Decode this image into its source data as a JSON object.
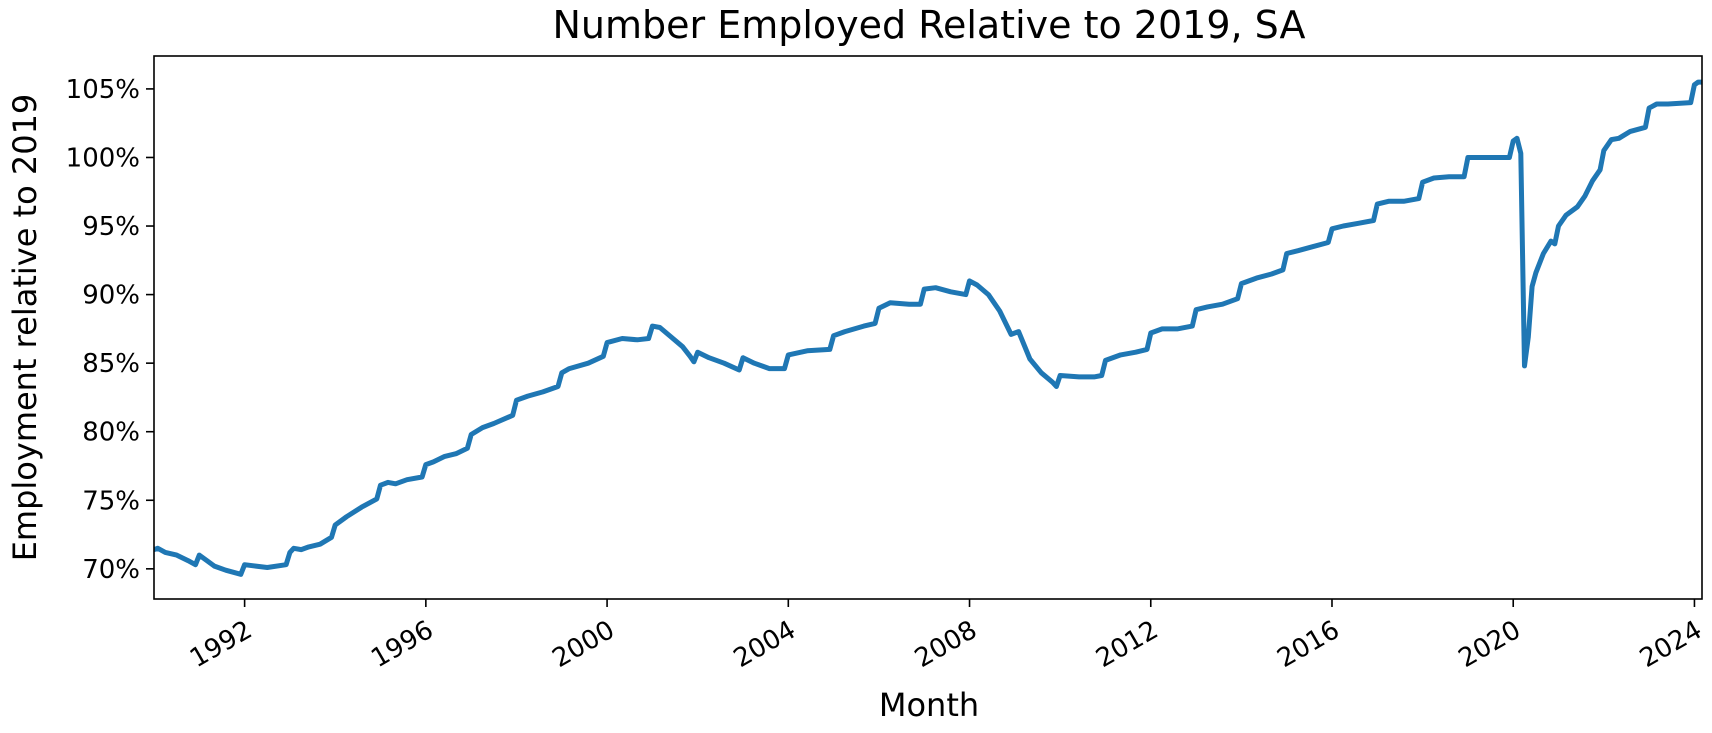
{
  "chart_data": {
    "type": "line",
    "title": "Number Employed Relative to 2019, SA",
    "xlabel": "Month",
    "ylabel": "Employment relative to 2019",
    "y_tick_format": "percent",
    "xlim": [
      "1990-01",
      "2024-03"
    ],
    "ylim": [
      67.8,
      107.4
    ],
    "grid": false,
    "x_ticks": [
      "1992",
      "1996",
      "2000",
      "2004",
      "2008",
      "2012",
      "2016",
      "2020",
      "2024"
    ],
    "y_ticks": [
      "70%",
      "75%",
      "80%",
      "85%",
      "90%",
      "95%",
      "100%",
      "105%"
    ],
    "series": [
      {
        "color": "#1f77b4",
        "points": [
          [
            "1990-01",
            71.4
          ],
          [
            "1990-02",
            71.5
          ],
          [
            "1990-04",
            71.2
          ],
          [
            "1990-07",
            71.0
          ],
          [
            "1990-10",
            70.6
          ],
          [
            "1990-12",
            70.3
          ],
          [
            "1991-01",
            71.0
          ],
          [
            "1991-03",
            70.6
          ],
          [
            "1991-05",
            70.2
          ],
          [
            "1991-08",
            69.9
          ],
          [
            "1991-12",
            69.6
          ],
          [
            "1992-01",
            70.3
          ],
          [
            "1992-04",
            70.2
          ],
          [
            "1992-07",
            70.1
          ],
          [
            "1992-12",
            70.3
          ],
          [
            "1993-01",
            71.2
          ],
          [
            "1993-02",
            71.5
          ],
          [
            "1993-04",
            71.4
          ],
          [
            "1993-06",
            71.6
          ],
          [
            "1993-09",
            71.8
          ],
          [
            "1993-12",
            72.3
          ],
          [
            "1994-01",
            73.2
          ],
          [
            "1994-04",
            73.8
          ],
          [
            "1994-08",
            74.5
          ],
          [
            "1994-12",
            75.1
          ],
          [
            "1995-01",
            76.1
          ],
          [
            "1995-03",
            76.3
          ],
          [
            "1995-05",
            76.2
          ],
          [
            "1995-08",
            76.5
          ],
          [
            "1995-12",
            76.7
          ],
          [
            "1996-01",
            77.6
          ],
          [
            "1996-03",
            77.8
          ],
          [
            "1996-06",
            78.2
          ],
          [
            "1996-09",
            78.4
          ],
          [
            "1996-12",
            78.8
          ],
          [
            "1997-01",
            79.8
          ],
          [
            "1997-04",
            80.3
          ],
          [
            "1997-07",
            80.6
          ],
          [
            "1997-12",
            81.2
          ],
          [
            "1998-01",
            82.3
          ],
          [
            "1998-04",
            82.6
          ],
          [
            "1998-08",
            82.9
          ],
          [
            "1998-12",
            83.3
          ],
          [
            "1999-01",
            84.3
          ],
          [
            "1999-03",
            84.6
          ],
          [
            "1999-08",
            85.0
          ],
          [
            "1999-12",
            85.5
          ],
          [
            "2000-01",
            86.5
          ],
          [
            "2000-05",
            86.8
          ],
          [
            "2000-09",
            86.7
          ],
          [
            "2000-12",
            86.8
          ],
          [
            "2001-01",
            87.7
          ],
          [
            "2001-03",
            87.6
          ],
          [
            "2001-06",
            86.9
          ],
          [
            "2001-09",
            86.2
          ],
          [
            "2001-11",
            85.5
          ],
          [
            "2001-12",
            85.1
          ],
          [
            "2002-01",
            85.8
          ],
          [
            "2002-04",
            85.4
          ],
          [
            "2002-08",
            85.0
          ],
          [
            "2002-12",
            84.5
          ],
          [
            "2003-01",
            85.4
          ],
          [
            "2003-04",
            85.0
          ],
          [
            "2003-08",
            84.6
          ],
          [
            "2003-12",
            84.6
          ],
          [
            "2004-01",
            85.6
          ],
          [
            "2004-06",
            85.9
          ],
          [
            "2004-12",
            86.0
          ],
          [
            "2005-01",
            87.0
          ],
          [
            "2005-04",
            87.3
          ],
          [
            "2005-09",
            87.7
          ],
          [
            "2005-12",
            87.9
          ],
          [
            "2006-01",
            89.0
          ],
          [
            "2006-04",
            89.4
          ],
          [
            "2006-09",
            89.3
          ],
          [
            "2006-12",
            89.3
          ],
          [
            "2007-01",
            90.4
          ],
          [
            "2007-04",
            90.5
          ],
          [
            "2007-08",
            90.2
          ],
          [
            "2007-12",
            90.0
          ],
          [
            "2008-01",
            91.0
          ],
          [
            "2008-03",
            90.7
          ],
          [
            "2008-06",
            90.0
          ],
          [
            "2008-09",
            88.8
          ],
          [
            "2008-12",
            87.1
          ],
          [
            "2009-02",
            87.3
          ],
          [
            "2009-05",
            85.3
          ],
          [
            "2009-08",
            84.3
          ],
          [
            "2009-11",
            83.6
          ],
          [
            "2009-12",
            83.3
          ],
          [
            "2010-01",
            84.1
          ],
          [
            "2010-06",
            84.0
          ],
          [
            "2010-10",
            84.0
          ],
          [
            "2010-12",
            84.1
          ],
          [
            "2011-01",
            85.2
          ],
          [
            "2011-05",
            85.6
          ],
          [
            "2011-09",
            85.8
          ],
          [
            "2011-12",
            86.0
          ],
          [
            "2012-01",
            87.2
          ],
          [
            "2012-04",
            87.5
          ],
          [
            "2012-08",
            87.5
          ],
          [
            "2012-12",
            87.7
          ],
          [
            "2013-01",
            88.9
          ],
          [
            "2013-04",
            89.1
          ],
          [
            "2013-08",
            89.3
          ],
          [
            "2013-12",
            89.7
          ],
          [
            "2014-01",
            90.8
          ],
          [
            "2014-05",
            91.2
          ],
          [
            "2014-09",
            91.5
          ],
          [
            "2014-12",
            91.8
          ],
          [
            "2015-01",
            93.0
          ],
          [
            "2015-04",
            93.2
          ],
          [
            "2015-08",
            93.5
          ],
          [
            "2015-12",
            93.8
          ],
          [
            "2016-01",
            94.8
          ],
          [
            "2016-04",
            95.0
          ],
          [
            "2016-08",
            95.2
          ],
          [
            "2016-12",
            95.4
          ],
          [
            "2017-01",
            96.6
          ],
          [
            "2017-04",
            96.8
          ],
          [
            "2017-08",
            96.8
          ],
          [
            "2017-12",
            97.0
          ],
          [
            "2018-01",
            98.2
          ],
          [
            "2018-04",
            98.5
          ],
          [
            "2018-08",
            98.6
          ],
          [
            "2018-12",
            98.6
          ],
          [
            "2019-01",
            100.0
          ],
          [
            "2019-06",
            100.0
          ],
          [
            "2019-12",
            100.0
          ],
          [
            "2020-01",
            101.2
          ],
          [
            "2020-02",
            101.4
          ],
          [
            "2020-03",
            100.3
          ],
          [
            "2020-04",
            84.8
          ],
          [
            "2020-05",
            86.9
          ],
          [
            "2020-06",
            90.6
          ],
          [
            "2020-07",
            91.6
          ],
          [
            "2020-09",
            93.0
          ],
          [
            "2020-11",
            93.9
          ],
          [
            "2020-12",
            93.7
          ],
          [
            "2021-01",
            95.0
          ],
          [
            "2021-03",
            95.8
          ],
          [
            "2021-06",
            96.4
          ],
          [
            "2021-08",
            97.2
          ],
          [
            "2021-10",
            98.3
          ],
          [
            "2021-12",
            99.1
          ],
          [
            "2022-01",
            100.5
          ],
          [
            "2022-03",
            101.3
          ],
          [
            "2022-05",
            101.4
          ],
          [
            "2022-08",
            101.9
          ],
          [
            "2022-12",
            102.2
          ],
          [
            "2023-01",
            103.6
          ],
          [
            "2023-03",
            103.9
          ],
          [
            "2023-06",
            103.9
          ],
          [
            "2023-12",
            104.0
          ],
          [
            "2024-01",
            105.3
          ],
          [
            "2024-02",
            105.5
          ],
          [
            "2024-03",
            105.5
          ]
        ]
      }
    ]
  }
}
